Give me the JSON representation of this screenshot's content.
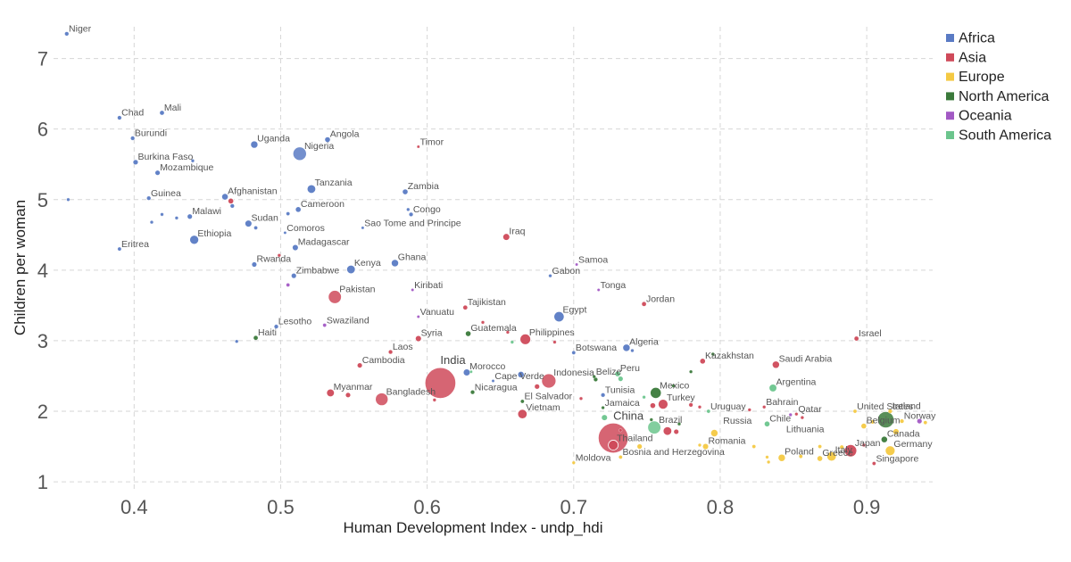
{
  "chart_data": {
    "type": "scatter",
    "title": "",
    "xlabel": "Human Development Index - undp_hdi",
    "ylabel": "Children per woman",
    "xlim": [
      0.345,
      0.945
    ],
    "ylim": [
      0.9,
      7.45
    ],
    "xticks": [
      0.4,
      0.5,
      0.6,
      0.7,
      0.8,
      0.9
    ],
    "xtick_labels": [
      "0.4",
      "0.5",
      "0.6",
      "0.7",
      "0.8",
      "0.9"
    ],
    "yticks": [
      1,
      2,
      3,
      4,
      5,
      6,
      7
    ],
    "ytick_labels": [
      "1",
      "2",
      "3",
      "4",
      "5",
      "6",
      "7"
    ],
    "grid": true,
    "legend_position": "top-right",
    "colors": {
      "Africa": "#5a7bc4",
      "Asia": "#cf4a5a",
      "Europe": "#f4c943",
      "North America": "#3b7a3b",
      "Oceania": "#a259c4",
      "South America": "#6cc58d"
    },
    "series": [
      {
        "name": "Africa",
        "points": [
          {
            "label": "Niger",
            "x": 0.354,
            "y": 7.35,
            "s": 1.0
          },
          {
            "label": "",
            "x": 0.355,
            "y": 5.0,
            "s": 0.8
          },
          {
            "label": "Chad",
            "x": 0.39,
            "y": 6.16,
            "s": 1.0
          },
          {
            "label": "Mali",
            "x": 0.419,
            "y": 6.23,
            "s": 1.1
          },
          {
            "label": "Burundi",
            "x": 0.399,
            "y": 5.87,
            "s": 1.0
          },
          {
            "label": "Burkina Faso",
            "x": 0.401,
            "y": 5.53,
            "s": 1.2
          },
          {
            "label": "",
            "x": 0.44,
            "y": 5.55,
            "s": 0.8
          },
          {
            "label": "Mozambique",
            "x": 0.416,
            "y": 5.38,
            "s": 1.3
          },
          {
            "label": "Guinea",
            "x": 0.41,
            "y": 5.02,
            "s": 1.0
          },
          {
            "label": "",
            "x": 0.412,
            "y": 4.68,
            "s": 0.8
          },
          {
            "label": "",
            "x": 0.419,
            "y": 4.79,
            "s": 0.8
          },
          {
            "label": "",
            "x": 0.429,
            "y": 4.74,
            "s": 0.8
          },
          {
            "label": "Malawi",
            "x": 0.438,
            "y": 4.76,
            "s": 1.3
          },
          {
            "label": "Ethiopia",
            "x": 0.441,
            "y": 4.43,
            "s": 2.2
          },
          {
            "label": "Eritrea",
            "x": 0.39,
            "y": 4.3,
            "s": 0.9
          },
          {
            "label": "Afghanistan",
            "x": 0.462,
            "y": 5.04,
            "s": 1.6
          },
          {
            "label": "",
            "x": 0.467,
            "y": 4.91,
            "s": 1.0
          },
          {
            "label": "Uganda",
            "x": 0.482,
            "y": 5.78,
            "s": 1.8
          },
          {
            "label": "Sudan",
            "x": 0.478,
            "y": 4.66,
            "s": 1.7
          },
          {
            "label": "",
            "x": 0.483,
            "y": 4.6,
            "s": 0.9
          },
          {
            "label": "Nigeria",
            "x": 0.513,
            "y": 5.65,
            "s": 3.3
          },
          {
            "label": "Angola",
            "x": 0.532,
            "y": 5.85,
            "s": 1.4
          },
          {
            "label": "Tanzania",
            "x": 0.521,
            "y": 5.15,
            "s": 2.1
          },
          {
            "label": "Cameroon",
            "x": 0.512,
            "y": 4.86,
            "s": 1.4
          },
          {
            "label": "",
            "x": 0.505,
            "y": 4.8,
            "s": 0.9
          },
          {
            "label": "Comoros",
            "x": 0.503,
            "y": 4.53,
            "s": 0.7
          },
          {
            "label": "Madagascar",
            "x": 0.51,
            "y": 4.32,
            "s": 1.5
          },
          {
            "label": "Rwanda",
            "x": 0.482,
            "y": 4.08,
            "s": 1.3
          },
          {
            "label": "Zimbabwe",
            "x": 0.509,
            "y": 3.92,
            "s": 1.2
          },
          {
            "label": "Lesotho",
            "x": 0.497,
            "y": 3.2,
            "s": 1.0
          },
          {
            "label": "",
            "x": 0.47,
            "y": 2.99,
            "s": 0.8
          },
          {
            "label": "Kenya",
            "x": 0.548,
            "y": 4.01,
            "s": 2.1
          },
          {
            "label": "Sao Tome and Principe",
            "x": 0.556,
            "y": 4.6,
            "s": 0.7
          },
          {
            "label": "Zambia",
            "x": 0.585,
            "y": 5.11,
            "s": 1.4
          },
          {
            "label": "Congo",
            "x": 0.589,
            "y": 4.79,
            "s": 1.0
          },
          {
            "label": "",
            "x": 0.587,
            "y": 4.86,
            "s": 0.8
          },
          {
            "label": "Ghana",
            "x": 0.578,
            "y": 4.1,
            "s": 1.8
          },
          {
            "label": "Morocco",
            "x": 0.627,
            "y": 2.55,
            "s": 1.7
          },
          {
            "label": "Cape Verde",
            "x": 0.645,
            "y": 2.43,
            "s": 0.7
          },
          {
            "label": "",
            "x": 0.664,
            "y": 2.52,
            "s": 1.6
          },
          {
            "label": "Gabon",
            "x": 0.684,
            "y": 3.92,
            "s": 0.8
          },
          {
            "label": "Egypt",
            "x": 0.69,
            "y": 3.34,
            "s": 2.5
          },
          {
            "label": "Botswana",
            "x": 0.7,
            "y": 2.83,
            "s": 0.9
          },
          {
            "label": "Algeria",
            "x": 0.736,
            "y": 2.9,
            "s": 1.8
          },
          {
            "label": "Tunisia",
            "x": 0.72,
            "y": 2.23,
            "s": 1.0
          },
          {
            "label": "",
            "x": 0.74,
            "y": 2.86,
            "s": 0.8
          }
        ]
      },
      {
        "name": "Asia",
        "points": [
          {
            "label": "",
            "x": 0.466,
            "y": 4.98,
            "s": 1.4
          },
          {
            "label": "",
            "x": 0.499,
            "y": 4.21,
            "s": 0.8
          },
          {
            "label": "Pakistan",
            "x": 0.537,
            "y": 3.62,
            "s": 3.2
          },
          {
            "label": "Timor",
            "x": 0.594,
            "y": 5.75,
            "s": 0.7
          },
          {
            "label": "Iraq",
            "x": 0.654,
            "y": 4.47,
            "s": 1.7
          },
          {
            "label": "Cambodia",
            "x": 0.554,
            "y": 2.65,
            "s": 1.3
          },
          {
            "label": "Laos",
            "x": 0.575,
            "y": 2.84,
            "s": 1.0
          },
          {
            "label": "Myanmar",
            "x": 0.534,
            "y": 2.26,
            "s": 1.9
          },
          {
            "label": "",
            "x": 0.546,
            "y": 2.23,
            "s": 1.3
          },
          {
            "label": "Bangladesh",
            "x": 0.569,
            "y": 2.17,
            "s": 3.1
          },
          {
            "label": "India",
            "x": 0.609,
            "y": 2.4,
            "s": 7.5
          },
          {
            "label": "",
            "x": 0.605,
            "y": 2.16,
            "s": 0.8
          },
          {
            "label": "Syria",
            "x": 0.594,
            "y": 3.03,
            "s": 1.5
          },
          {
            "label": "Tajikistan",
            "x": 0.626,
            "y": 3.47,
            "s": 1.1
          },
          {
            "label": "",
            "x": 0.638,
            "y": 3.26,
            "s": 0.8
          },
          {
            "label": "Philippines",
            "x": 0.667,
            "y": 3.02,
            "s": 2.6
          },
          {
            "label": "",
            "x": 0.655,
            "y": 3.12,
            "s": 0.8
          },
          {
            "label": "",
            "x": 0.687,
            "y": 2.98,
            "s": 0.8
          },
          {
            "label": "Indonesia",
            "x": 0.683,
            "y": 2.43,
            "s": 3.5
          },
          {
            "label": "",
            "x": 0.675,
            "y": 2.35,
            "s": 1.2
          },
          {
            "label": "Vietnam",
            "x": 0.665,
            "y": 1.96,
            "s": 2.3
          },
          {
            "label": "",
            "x": 0.705,
            "y": 2.18,
            "s": 0.8
          },
          {
            "label": "Jordan",
            "x": 0.748,
            "y": 3.52,
            "s": 1.1
          },
          {
            "label": "Thailand",
            "x": 0.727,
            "y": 1.52,
            "s": 2.4
          },
          {
            "label": "China",
            "x": 0.727,
            "y": 1.62,
            "s": 7.3
          },
          {
            "label": "",
            "x": 0.732,
            "y": 1.73,
            "s": 0.8
          },
          {
            "label": "Turkey",
            "x": 0.761,
            "y": 2.1,
            "s": 2.4
          },
          {
            "label": "",
            "x": 0.754,
            "y": 2.08,
            "s": 1.4
          },
          {
            "label": "",
            "x": 0.78,
            "y": 2.09,
            "s": 1.0
          },
          {
            "label": "",
            "x": 0.786,
            "y": 2.06,
            "s": 0.8
          },
          {
            "label": "",
            "x": 0.764,
            "y": 1.72,
            "s": 2.1
          },
          {
            "label": "",
            "x": 0.77,
            "y": 1.71,
            "s": 1.3
          },
          {
            "label": "Kazakhstan",
            "x": 0.788,
            "y": 2.71,
            "s": 1.4
          },
          {
            "label": "Saudi Arabia",
            "x": 0.838,
            "y": 2.66,
            "s": 1.8
          },
          {
            "label": "Bahrain",
            "x": 0.83,
            "y": 2.06,
            "s": 0.8
          },
          {
            "label": "",
            "x": 0.82,
            "y": 2.02,
            "s": 0.8
          },
          {
            "label": "Qatar",
            "x": 0.852,
            "y": 1.96,
            "s": 0.8
          },
          {
            "label": "",
            "x": 0.856,
            "y": 1.91,
            "s": 0.8
          },
          {
            "label": "Israel",
            "x": 0.893,
            "y": 3.03,
            "s": 1.1
          },
          {
            "label": "Japan",
            "x": 0.889,
            "y": 1.44,
            "s": 3.0
          },
          {
            "label": "Singapore",
            "x": 0.905,
            "y": 1.26,
            "s": 0.9
          },
          {
            "label": "",
            "x": 0.898,
            "y": 1.52,
            "s": 0.8
          }
        ]
      },
      {
        "name": "Europe",
        "points": [
          {
            "label": "Moldova",
            "x": 0.7,
            "y": 1.27,
            "s": 0.8
          },
          {
            "label": "Bosnia and Herzegovina",
            "x": 0.732,
            "y": 1.35,
            "s": 0.9
          },
          {
            "label": "",
            "x": 0.745,
            "y": 1.5,
            "s": 1.2
          },
          {
            "label": "Romania",
            "x": 0.79,
            "y": 1.5,
            "s": 1.5
          },
          {
            "label": "",
            "x": 0.796,
            "y": 1.69,
            "s": 1.8
          },
          {
            "label": "",
            "x": 0.786,
            "y": 1.52,
            "s": 0.8
          },
          {
            "label": "",
            "x": 0.823,
            "y": 1.5,
            "s": 0.9
          },
          {
            "label": "",
            "x": 0.832,
            "y": 1.35,
            "s": 0.8
          },
          {
            "label": "",
            "x": 0.833,
            "y": 1.28,
            "s": 0.8
          },
          {
            "label": "Poland",
            "x": 0.842,
            "y": 1.34,
            "s": 1.8
          },
          {
            "label": "",
            "x": 0.855,
            "y": 1.36,
            "s": 0.9
          },
          {
            "label": "Greece",
            "x": 0.868,
            "y": 1.33,
            "s": 1.4
          },
          {
            "label": "Italy",
            "x": 0.876,
            "y": 1.36,
            "s": 2.3
          },
          {
            "label": "",
            "x": 0.868,
            "y": 1.5,
            "s": 0.9
          },
          {
            "label": "",
            "x": 0.883,
            "y": 1.49,
            "s": 1.0
          },
          {
            "label": "United States",
            "x": 0.892,
            "y": 2.0,
            "s": 0.9
          },
          {
            "label": "Belgium",
            "x": 0.898,
            "y": 1.79,
            "s": 1.4
          },
          {
            "label": "",
            "x": 0.904,
            "y": 1.85,
            "s": 1.0
          },
          {
            "label": "Ireland",
            "x": 0.916,
            "y": 2.0,
            "s": 1.0
          },
          {
            "label": "Norway",
            "x": 0.924,
            "y": 1.86,
            "s": 1.0
          },
          {
            "label": "Germany",
            "x": 0.916,
            "y": 1.44,
            "s": 2.4
          },
          {
            "label": "",
            "x": 0.92,
            "y": 1.71,
            "s": 1.5
          },
          {
            "label": "",
            "x": 0.94,
            "y": 1.84,
            "s": 0.9
          }
        ]
      },
      {
        "name": "North America",
        "points": [
          {
            "label": "Haiti",
            "x": 0.483,
            "y": 3.04,
            "s": 1.1
          },
          {
            "label": "Guatemala",
            "x": 0.628,
            "y": 3.1,
            "s": 1.4
          },
          {
            "label": "Nicaragua",
            "x": 0.631,
            "y": 2.27,
            "s": 1.0
          },
          {
            "label": "El Salvador",
            "x": 0.665,
            "y": 2.14,
            "s": 0.9
          },
          {
            "label": "Belize",
            "x": 0.714,
            "y": 2.49,
            "s": 0.8
          },
          {
            "label": "",
            "x": 0.715,
            "y": 2.45,
            "s": 1.0
          },
          {
            "label": "Jamaica",
            "x": 0.72,
            "y": 2.05,
            "s": 0.8
          },
          {
            "label": "Mexico",
            "x": 0.756,
            "y": 2.26,
            "s": 2.7
          },
          {
            "label": "",
            "x": 0.768,
            "y": 2.36,
            "s": 0.8
          },
          {
            "label": "",
            "x": 0.78,
            "y": 2.56,
            "s": 0.8
          },
          {
            "label": "",
            "x": 0.795,
            "y": 2.81,
            "s": 0.8
          },
          {
            "label": "",
            "x": 0.753,
            "y": 1.88,
            "s": 0.8
          },
          {
            "label": "",
            "x": 0.772,
            "y": 1.82,
            "s": 0.8
          },
          {
            "label": "Canada",
            "x": 0.912,
            "y": 1.6,
            "s": 1.6
          },
          {
            "label": "",
            "x": 0.913,
            "y": 1.88,
            "s": 4.0
          }
        ]
      },
      {
        "name": "Oceania",
        "points": [
          {
            "label": "",
            "x": 0.505,
            "y": 3.79,
            "s": 0.9
          },
          {
            "label": "Kiribati",
            "x": 0.59,
            "y": 3.72,
            "s": 0.7
          },
          {
            "label": "Vanuatu",
            "x": 0.594,
            "y": 3.34,
            "s": 0.7
          },
          {
            "label": "Samoa",
            "x": 0.702,
            "y": 4.08,
            "s": 0.7
          },
          {
            "label": "Tonga",
            "x": 0.717,
            "y": 3.72,
            "s": 0.7
          },
          {
            "label": "Swaziland",
            "x": 0.53,
            "y": 3.22,
            "s": 0.9
          },
          {
            "label": "",
            "x": 0.848,
            "y": 1.95,
            "s": 0.8
          },
          {
            "label": "",
            "x": 0.936,
            "y": 1.86,
            "s": 1.2
          }
        ]
      },
      {
        "name": "South America",
        "points": [
          {
            "label": "",
            "x": 0.63,
            "y": 2.56,
            "s": 0.7
          },
          {
            "label": "",
            "x": 0.658,
            "y": 2.98,
            "s": 0.8
          },
          {
            "label": "Peru",
            "x": 0.73,
            "y": 2.53,
            "s": 1.4
          },
          {
            "label": "",
            "x": 0.732,
            "y": 2.46,
            "s": 1.3
          },
          {
            "label": "",
            "x": 0.721,
            "y": 1.91,
            "s": 1.5
          },
          {
            "label": "Brazil",
            "x": 0.755,
            "y": 1.77,
            "s": 3.2
          },
          {
            "label": "Uruguay",
            "x": 0.792,
            "y": 2.0,
            "s": 0.9
          },
          {
            "label": "Argentina",
            "x": 0.836,
            "y": 2.33,
            "s": 1.9
          },
          {
            "label": "Chile",
            "x": 0.832,
            "y": 1.82,
            "s": 1.4
          },
          {
            "label": "",
            "x": 0.748,
            "y": 2.2,
            "s": 0.8
          }
        ]
      }
    ],
    "extra_labels": [
      {
        "text": "Russia",
        "x": 0.802,
        "y": 1.82
      },
      {
        "text": "Lithuania",
        "x": 0.845,
        "y": 1.7
      }
    ]
  },
  "legend": {
    "items": [
      "Africa",
      "Asia",
      "Europe",
      "North America",
      "Oceania",
      "South America"
    ]
  }
}
